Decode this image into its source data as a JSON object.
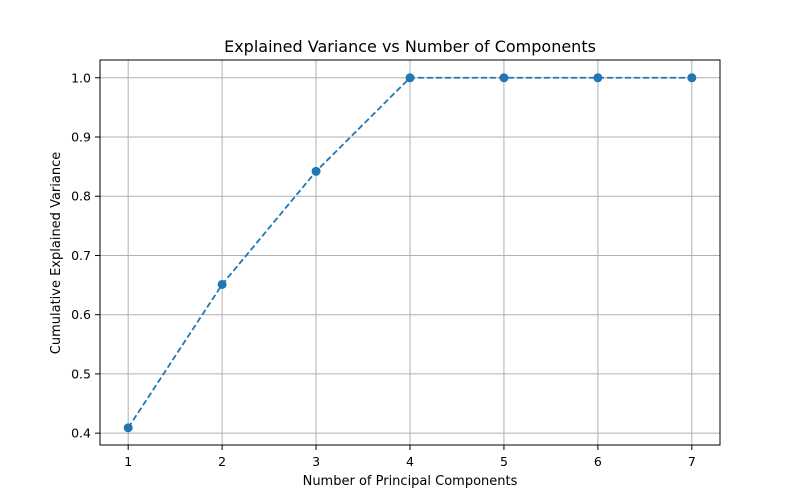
{
  "chart_data": {
    "type": "line",
    "title": "Explained Variance vs Number of Components",
    "xlabel": "Number of Principal Components",
    "ylabel": "Cumulative Explained Variance",
    "x": [
      1,
      2,
      3,
      4,
      5,
      6,
      7
    ],
    "series": [
      {
        "values": [
          0.409,
          0.651,
          0.842,
          1.0,
          1.0,
          1.0,
          1.0
        ],
        "color": "#1f77b4",
        "line_style": "dashed",
        "marker": "circle"
      }
    ],
    "xticks": [
      "1",
      "2",
      "3",
      "4",
      "5",
      "6",
      "7"
    ],
    "yticks": [
      "0.4",
      "0.5",
      "0.6",
      "0.7",
      "0.8",
      "0.9",
      "1.0"
    ],
    "xlim": [
      0.7,
      7.3
    ],
    "ylim": [
      0.38,
      1.03
    ],
    "grid": true,
    "legend": false
  }
}
